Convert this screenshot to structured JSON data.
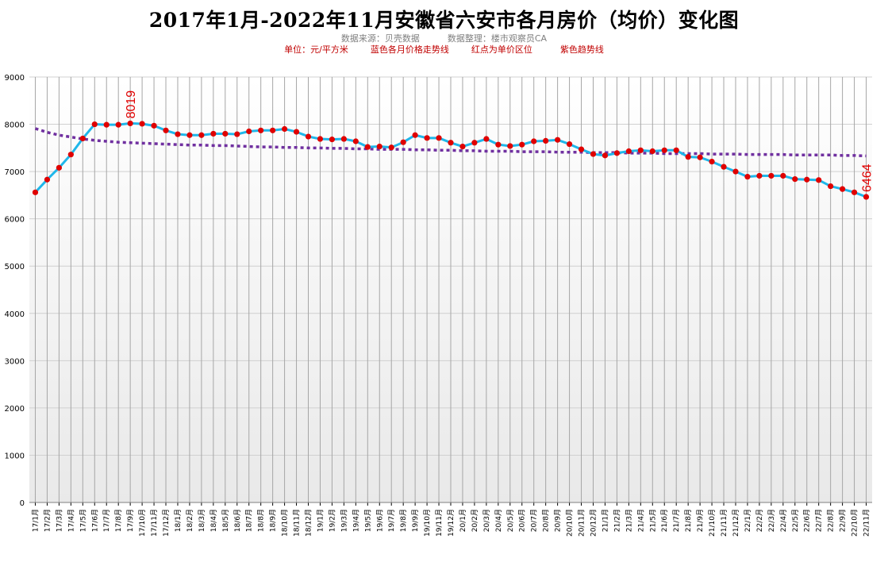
{
  "chart_data": {
    "type": "line",
    "title": "2017年1月-2022年11月安徽省六安市各月房价（均价）变化图",
    "subtitle_source": "数据来源：贝壳数据",
    "subtitle_author": "数据整理：楼市观察员CA",
    "legend_unit": "单位：元/平方米",
    "legend_blue": "蓝色各月价格走势线",
    "legend_red": "红点为单价区位",
    "legend_purple": "紫色趋势线",
    "ylim": [
      0,
      9000
    ],
    "yticks": [
      "0",
      "1000",
      "2000",
      "3000",
      "4000",
      "5000",
      "6000",
      "7000",
      "8000",
      "9000"
    ],
    "grid": true,
    "categories": [
      "17/1月",
      "17/2月",
      "17/3月",
      "17/4月",
      "17/5月",
      "17/6月",
      "17/7月",
      "17/8月",
      "17/9月",
      "17/10月",
      "17/11月",
      "17/12月",
      "18/1月",
      "18/2月",
      "18/3月",
      "18/4月",
      "18/5月",
      "18/6月",
      "18/7月",
      "18/8月",
      "18/9月",
      "18/10月",
      "18/11月",
      "18/12月",
      "19/1月",
      "19/2月",
      "19/3月",
      "19/4月",
      "19/5月",
      "19/6月",
      "19/7月",
      "19/8月",
      "19/9月",
      "19/10月",
      "19/11月",
      "19/12月",
      "20/1月",
      "20/2月",
      "20/3月",
      "20/4月",
      "20/5月",
      "20/6月",
      "20/7月",
      "20/8月",
      "20/9月",
      "20/10月",
      "20/11月",
      "20/12月",
      "21/1月",
      "21/2月",
      "21/3月",
      "21/4月",
      "21/5月",
      "21/6月",
      "21/7月",
      "21/8月",
      "21/9月",
      "21/10月",
      "21/11月",
      "21/12月",
      "22/1月",
      "22/2月",
      "22/3月",
      "22/4月",
      "22/5月",
      "22/6月",
      "22/7月",
      "22/8月",
      "22/9月",
      "22/10月",
      "22/11月"
    ],
    "series": [
      {
        "values": [
          6560,
          6830,
          7080,
          7360,
          7700,
          8000,
          7990,
          7990,
          8019,
          8010,
          7970,
          7870,
          7790,
          7770,
          7770,
          7800,
          7800,
          7790,
          7850,
          7870,
          7870,
          7900,
          7840,
          7740,
          7690,
          7680,
          7690,
          7640,
          7520,
          7530,
          7510,
          7620,
          7770,
          7710,
          7710,
          7610,
          7530,
          7610,
          7690,
          7570,
          7540,
          7570,
          7640,
          7650,
          7670,
          7580,
          7470,
          7370,
          7340,
          7390,
          7430,
          7450,
          7430,
          7450,
          7450,
          7310,
          7300,
          7210,
          7100,
          7000,
          6890,
          6910,
          6910,
          6910,
          6840,
          6830,
          6820,
          6690,
          6630,
          6560,
          6464
        ],
        "color": "#1fb7ea",
        "marker_color": "#e00000"
      },
      {
        "values": [
          7910,
          7830,
          7770,
          7730,
          7690,
          7660,
          7640,
          7620,
          7610,
          7600,
          7590,
          7580,
          7570,
          7560,
          7560,
          7550,
          7550,
          7540,
          7530,
          7520,
          7520,
          7510,
          7510,
          7500,
          7500,
          7490,
          7490,
          7480,
          7480,
          7470,
          7470,
          7470,
          7460,
          7460,
          7450,
          7450,
          7440,
          7440,
          7430,
          7430,
          7430,
          7420,
          7420,
          7420,
          7410,
          7410,
          7410,
          7400,
          7400,
          7400,
          7390,
          7390,
          7390,
          7380,
          7380,
          7380,
          7380,
          7370,
          7370,
          7370,
          7360,
          7360,
          7360,
          7360,
          7350,
          7350,
          7350,
          7350,
          7340,
          7340,
          7330
        ],
        "color": "#7030a0",
        "style": "dotted"
      }
    ],
    "annotations": [
      {
        "text": "8019",
        "index": 8
      },
      {
        "text": "6464",
        "index": 70
      }
    ]
  }
}
